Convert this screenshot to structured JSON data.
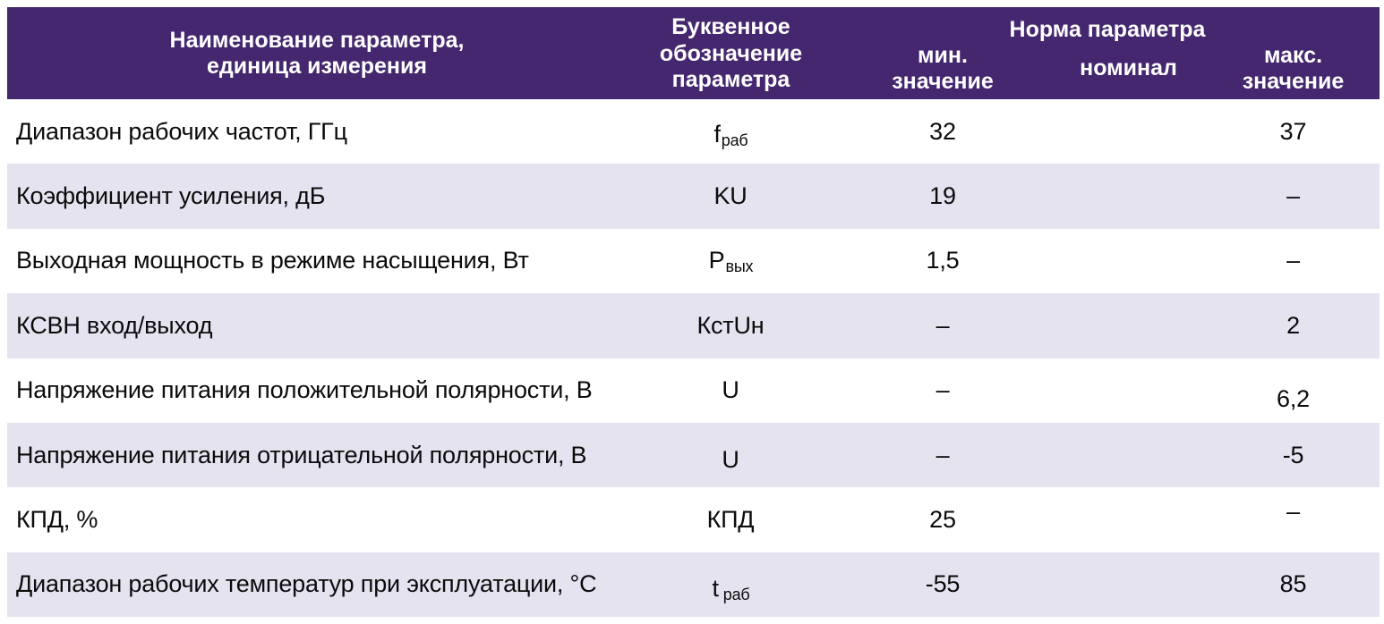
{
  "colors": {
    "header_bg": "#44276e",
    "header_text": "#ffffff",
    "row_alt_bg": "#e5e3ef",
    "row_bg": "#ffffff",
    "body_text": "#0b0b0b"
  },
  "table": {
    "header": {
      "name_col": "Наименование параметра,\nединица измерения",
      "symbol_col": "Буквенное\nобозначение\nпараметра",
      "norm_group": "Норма параметра",
      "min_col": "мин.\nзначение",
      "nom_col": "номинал",
      "max_col": "макс.\nзначение"
    },
    "rows": [
      {
        "name": "Диапазон рабочих частот, ГГц",
        "symbol": "f",
        "symbol_sub": "раб",
        "min": "32",
        "nominal": "",
        "max": "37"
      },
      {
        "name": "Коэффициент усиления, дБ",
        "symbol": "KU",
        "symbol_sub": "",
        "min": "19",
        "nominal": "",
        "max": "–"
      },
      {
        "name": "Выходная мощность в режиме насыщения, Вт",
        "symbol": "P",
        "symbol_sub": "вых",
        "min": "1,5",
        "nominal": "",
        "max": "–"
      },
      {
        "name": "КСВН вход/выход",
        "symbol": "КстUн",
        "symbol_sub": "",
        "min": "–",
        "nominal": "",
        "max": "2"
      },
      {
        "name": "Напряжение питания положительной полярности, В",
        "symbol": "U",
        "symbol_sub": "",
        "min": "–",
        "nominal": "",
        "max": "6,2"
      },
      {
        "name": "Напряжение питания отрицательной полярности, В",
        "symbol": "U",
        "symbol_sub": "",
        "min": "–",
        "nominal": "",
        "max": "-5"
      },
      {
        "name": "КПД, %",
        "symbol": "КПД",
        "symbol_sub": "",
        "min": "25",
        "nominal": "",
        "max": "–"
      },
      {
        "name": "Диапазон рабочих температур при эксплуатации, °C",
        "symbol": "t",
        "symbol_sub": "раб",
        "min": "-55",
        "nominal": "",
        "max": "85"
      }
    ]
  }
}
